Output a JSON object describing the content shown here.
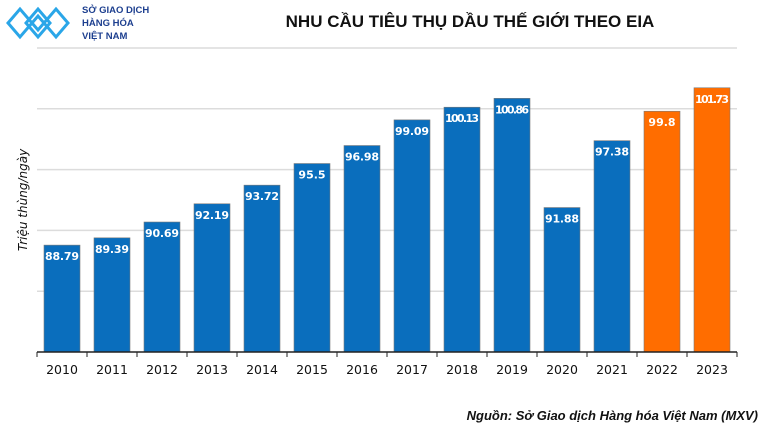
{
  "logo": {
    "lines": [
      "SỞ GIAO DỊCH",
      "HÀNG HÓA",
      "VIỆT NAM"
    ],
    "color": "#1d3f8f"
  },
  "source": "Nguồn: Sở Giao dịch Hàng hóa Việt Nam (MXV)",
  "chart_data": {
    "type": "bar",
    "title": "NHU CẦU TIÊU THỤ DẦU THẾ GIỚI THEO EIA",
    "ylabel": "Triệu thùng/ngày",
    "xlabel": "",
    "categories": [
      "2010",
      "2011",
      "2012",
      "2013",
      "2014",
      "2015",
      "2016",
      "2017",
      "2018",
      "2019",
      "2020",
      "2021",
      "2022",
      "2023"
    ],
    "values": [
      88.79,
      89.39,
      90.69,
      92.19,
      93.72,
      95.5,
      96.98,
      99.09,
      100.13,
      100.86,
      91.88,
      97.38,
      99.8,
      101.73
    ],
    "labels": [
      "88.79",
      "89.39",
      "90.69",
      "92.19",
      "93.72",
      "95.5",
      "96.98",
      "99.09",
      "100.13",
      "100.86",
      "91.88",
      "97.38",
      "99.8",
      "101.73"
    ],
    "ylim": [
      80,
      105
    ],
    "grid": true,
    "y_tick_labels_shown": false,
    "colors": {
      "actual": "#0a6ebd",
      "forecast": "#ff6d00"
    },
    "forecast_categories": [
      "2022",
      "2023"
    ]
  }
}
